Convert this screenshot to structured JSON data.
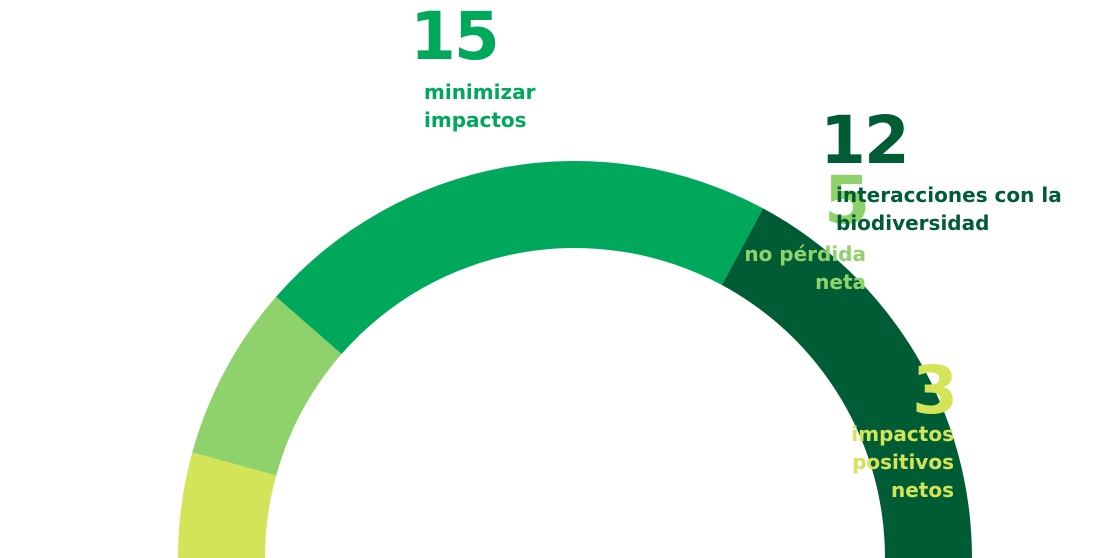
{
  "chart_data": {
    "type": "half-donut",
    "categories": [
      "impactos positivos netos",
      "no pérdida neta",
      "minimizar impactos",
      "interacciones con la biodiversidad"
    ],
    "values": [
      3,
      5,
      15,
      12
    ],
    "colors": [
      "#d4e458",
      "#8fd16b",
      "#00a85b",
      "#005c35"
    ]
  }
}
